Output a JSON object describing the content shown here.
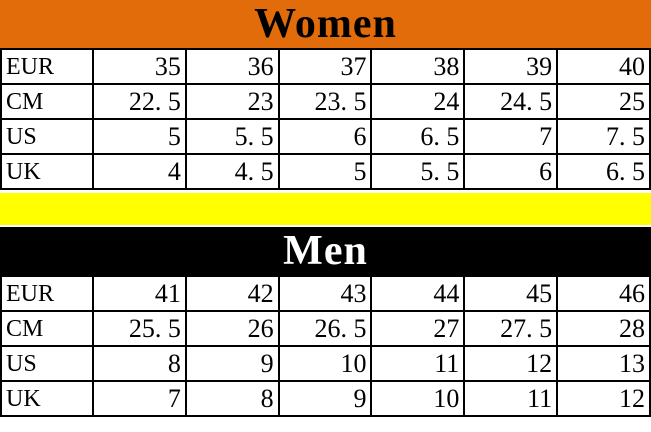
{
  "colors": {
    "women_header_bg": "#e26b0a",
    "women_header_text": "#000000",
    "men_header_bg": "#000000",
    "men_header_text": "#ffffff",
    "divider_bg": "#ffff00",
    "border_color": "#000000",
    "cell_bg": "#ffffff",
    "cell_text": "#000000"
  },
  "women": {
    "title": "Women",
    "rows": [
      {
        "label": "EUR",
        "values": [
          "35",
          "36",
          "37",
          "38",
          "39",
          "40"
        ]
      },
      {
        "label": "CM",
        "values": [
          "22. 5",
          "23",
          "23. 5",
          "24",
          "24. 5",
          "25"
        ]
      },
      {
        "label": "US",
        "values": [
          "5",
          "5. 5",
          "6",
          "6. 5",
          "7",
          "7. 5"
        ]
      },
      {
        "label": "UK",
        "values": [
          "4",
          "4. 5",
          "5",
          "5. 5",
          "6",
          "6. 5"
        ]
      }
    ]
  },
  "men": {
    "title": "Men",
    "rows": [
      {
        "label": "EUR",
        "values": [
          "41",
          "42",
          "43",
          "44",
          "45",
          "46"
        ]
      },
      {
        "label": "CM",
        "values": [
          "25. 5",
          "26",
          "26. 5",
          "27",
          "27. 5",
          "28"
        ]
      },
      {
        "label": "US",
        "values": [
          "8",
          "9",
          "10",
          "11",
          "12",
          "13"
        ]
      },
      {
        "label": "UK",
        "values": [
          "7",
          "8",
          "9",
          "10",
          "11",
          "12"
        ]
      }
    ]
  },
  "chart_data": {
    "type": "table",
    "tables": [
      {
        "title": "Women",
        "row_headers": [
          "EUR",
          "CM",
          "US",
          "UK"
        ],
        "rows": [
          [
            35,
            36,
            37,
            38,
            39,
            40
          ],
          [
            22.5,
            23,
            23.5,
            24,
            24.5,
            25
          ],
          [
            5,
            5.5,
            6,
            6.5,
            7,
            7.5
          ],
          [
            4,
            4.5,
            5,
            5.5,
            6,
            6.5
          ]
        ]
      },
      {
        "title": "Men",
        "row_headers": [
          "EUR",
          "CM",
          "US",
          "UK"
        ],
        "rows": [
          [
            41,
            42,
            43,
            44,
            45,
            46
          ],
          [
            25.5,
            26,
            26.5,
            27,
            27.5,
            28
          ],
          [
            8,
            9,
            10,
            11,
            12,
            13
          ],
          [
            7,
            8,
            9,
            10,
            11,
            12
          ]
        ]
      }
    ]
  }
}
